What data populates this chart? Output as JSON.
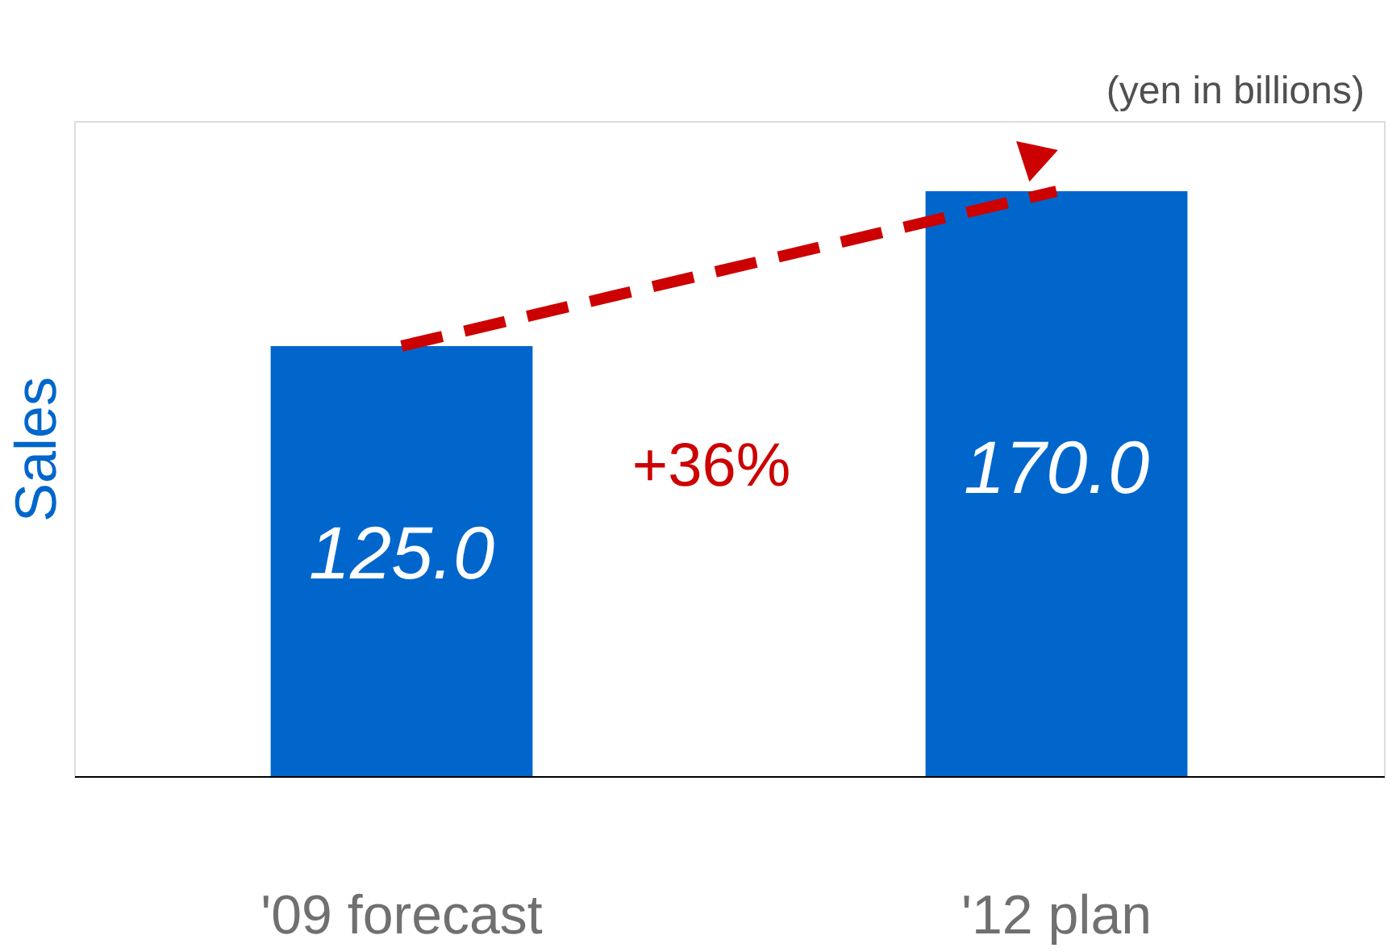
{
  "chart_data": {
    "type": "bar",
    "categories": [
      "'09 forecast",
      "'12 plan"
    ],
    "series": [
      {
        "color": "#0066cc",
        "values": [
          125.0,
          170.0
        ],
        "value_labels": [
          "125.0",
          "170.0"
        ]
      },
      {
        "type": "line",
        "color": "#cc0000",
        "values": [
          125.0,
          170.0
        ],
        "line_style": "dashed",
        "marker": "none"
      }
    ],
    "ylabel": "Sales",
    "annotations": [
      "+36%",
      "(yen in billions)"
    ],
    "grid": false
  }
}
